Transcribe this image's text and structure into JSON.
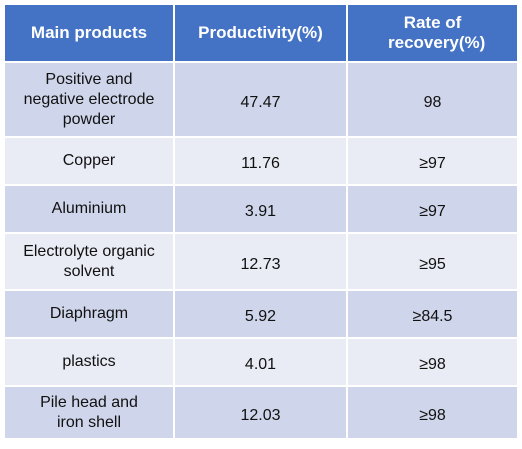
{
  "table": {
    "headers": [
      "Main products",
      "Productivity(%)",
      "Rate of recovery(%)"
    ],
    "rows": [
      [
        "Positive and negative electrode powder",
        "47.47",
        "98"
      ],
      [
        "Copper",
        "11.76",
        "≥97"
      ],
      [
        "Aluminium",
        "3.91",
        "≥97"
      ],
      [
        "Electrolyte organic solvent",
        "12.73",
        "≥95"
      ],
      [
        "Diaphragm",
        "5.92",
        "≥84.5"
      ],
      [
        "plastics",
        "4.01",
        "≥98"
      ],
      [
        "Pile head and iron shell",
        "12.03",
        "≥98"
      ]
    ]
  },
  "colors": {
    "header_bg": "#4472c4",
    "row_dark": "#cfd5ea",
    "row_light": "#e9ebf5",
    "header_text": "#ffffff"
  }
}
